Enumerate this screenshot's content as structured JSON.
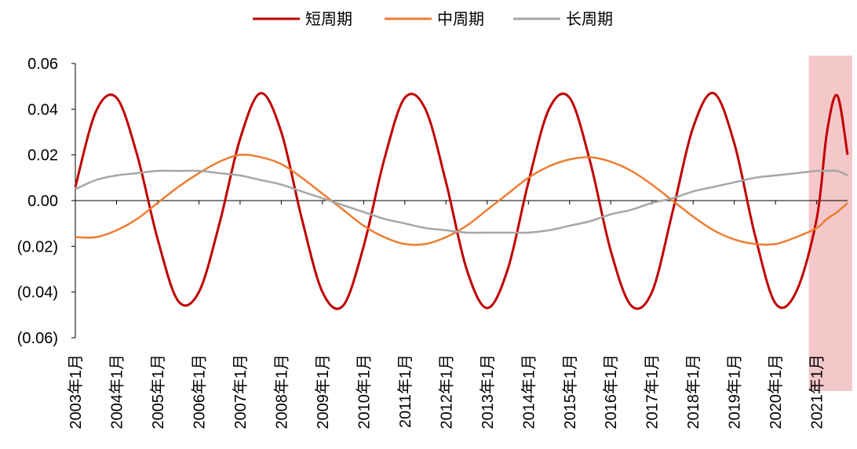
{
  "legend": {
    "items": [
      {
        "label": "短周期",
        "color": "#C00000"
      },
      {
        "label": "中周期",
        "color": "#ED7D31"
      },
      {
        "label": "长周期",
        "color": "#A6A6A6"
      }
    ]
  },
  "chart_data": {
    "type": "line",
    "title": "",
    "xlabel": "",
    "ylabel": "",
    "ylim": [
      -0.06,
      0.06
    ],
    "y_ticks": [
      0.06,
      0.04,
      0.02,
      0.0,
      -0.02,
      -0.04,
      -0.06
    ],
    "y_tick_labels": [
      "0.06",
      "0.04",
      "0.02",
      "0.00",
      "(0.02)",
      "(0.04)",
      "(0.06)"
    ],
    "x_range": [
      "2003年1月",
      "2021年10月"
    ],
    "x_tick_labels": [
      "2003年1月",
      "2004年1月",
      "2005年1月",
      "2006年1月",
      "2007年1月",
      "2008年1月",
      "2009年1月",
      "2010年1月",
      "2011年1月",
      "2012年1月",
      "2013年1月",
      "2014年1月",
      "2015年1月",
      "2016年1月",
      "2017年1月",
      "2018年1月",
      "2019年1月",
      "2020年1月",
      "2021年1月"
    ],
    "legend_position": "top",
    "grid": false,
    "highlight": {
      "from": "2021年1月",
      "to": "2021年10月",
      "color": "#F4C7C9"
    },
    "series": [
      {
        "name": "短周期",
        "color": "#C00000",
        "x": [
          "2003-01",
          "2003-07",
          "2004-01",
          "2004-07",
          "2005-01",
          "2005-07",
          "2006-01",
          "2006-07",
          "2007-01",
          "2007-07",
          "2008-01",
          "2008-07",
          "2009-01",
          "2009-07",
          "2010-01",
          "2010-07",
          "2011-01",
          "2011-07",
          "2012-01",
          "2012-07",
          "2013-01",
          "2013-07",
          "2014-01",
          "2014-07",
          "2015-01",
          "2015-07",
          "2016-01",
          "2016-07",
          "2017-01",
          "2017-07",
          "2018-01",
          "2018-07",
          "2019-01",
          "2019-07",
          "2020-01",
          "2020-07",
          "2021-01",
          "2021-04",
          "2021-07",
          "2021-10"
        ],
        "values": [
          0.006,
          0.039,
          0.045,
          0.02,
          -0.017,
          -0.044,
          -0.04,
          -0.01,
          0.027,
          0.047,
          0.03,
          -0.008,
          -0.04,
          -0.046,
          -0.02,
          0.018,
          0.045,
          0.04,
          0.008,
          -0.03,
          -0.047,
          -0.03,
          0.008,
          0.04,
          0.045,
          0.017,
          -0.022,
          -0.046,
          -0.04,
          -0.005,
          0.032,
          0.047,
          0.025,
          -0.015,
          -0.045,
          -0.04,
          -0.008,
          0.03,
          0.046,
          0.02
        ]
      },
      {
        "name": "中周期",
        "color": "#ED7D31",
        "x": [
          "2003-01",
          "2003-07",
          "2004-01",
          "2004-07",
          "2005-01",
          "2005-07",
          "2006-01",
          "2006-07",
          "2007-01",
          "2007-07",
          "2008-01",
          "2008-07",
          "2009-01",
          "2009-07",
          "2010-01",
          "2010-07",
          "2011-01",
          "2011-07",
          "2012-01",
          "2012-07",
          "2013-01",
          "2013-07",
          "2014-01",
          "2014-07",
          "2015-01",
          "2015-07",
          "2016-01",
          "2016-07",
          "2017-01",
          "2017-07",
          "2018-01",
          "2018-07",
          "2019-01",
          "2019-07",
          "2020-01",
          "2020-07",
          "2021-01",
          "2021-04",
          "2021-07",
          "2021-10"
        ],
        "values": [
          -0.016,
          -0.016,
          -0.013,
          -0.008,
          -0.001,
          0.006,
          0.012,
          0.017,
          0.02,
          0.019,
          0.016,
          0.01,
          0.003,
          -0.004,
          -0.011,
          -0.016,
          -0.019,
          -0.019,
          -0.016,
          -0.011,
          -0.004,
          0.003,
          0.01,
          0.015,
          0.018,
          0.019,
          0.017,
          0.013,
          0.007,
          0.0,
          -0.007,
          -0.013,
          -0.017,
          -0.019,
          -0.019,
          -0.016,
          -0.012,
          -0.008,
          -0.005,
          -0.001
        ]
      },
      {
        "name": "长周期",
        "color": "#A6A6A6",
        "x": [
          "2003-01",
          "2003-07",
          "2004-01",
          "2004-07",
          "2005-01",
          "2005-07",
          "2006-01",
          "2006-07",
          "2007-01",
          "2007-07",
          "2008-01",
          "2008-07",
          "2009-01",
          "2009-07",
          "2010-01",
          "2010-07",
          "2011-01",
          "2011-07",
          "2012-01",
          "2012-07",
          "2013-01",
          "2013-07",
          "2014-01",
          "2014-07",
          "2015-01",
          "2015-07",
          "2016-01",
          "2016-07",
          "2017-01",
          "2017-07",
          "2018-01",
          "2018-07",
          "2019-01",
          "2019-07",
          "2020-01",
          "2020-07",
          "2021-01",
          "2021-04",
          "2021-07",
          "2021-10"
        ],
        "values": [
          0.005,
          0.009,
          0.011,
          0.012,
          0.013,
          0.013,
          0.013,
          0.012,
          0.011,
          0.009,
          0.007,
          0.004,
          0.001,
          -0.002,
          -0.005,
          -0.008,
          -0.01,
          -0.012,
          -0.013,
          -0.014,
          -0.014,
          -0.014,
          -0.014,
          -0.013,
          -0.011,
          -0.009,
          -0.006,
          -0.004,
          -0.001,
          0.001,
          0.004,
          0.006,
          0.008,
          0.01,
          0.011,
          0.012,
          0.013,
          0.013,
          0.013,
          0.011
        ]
      }
    ]
  }
}
